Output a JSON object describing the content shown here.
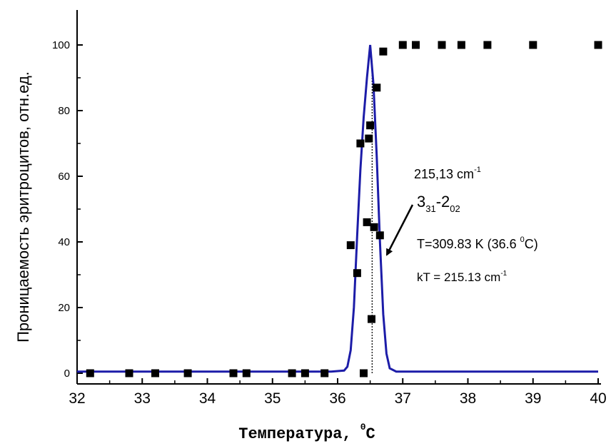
{
  "chart_data": {
    "type": "scatter",
    "xlabel": "Температура, ⁰С",
    "xlabel_main": "Температура,",
    "xlabel_sup": "0",
    "xlabel_unit": "C",
    "ylabel": "Проницаемость эритроцитов, отн.ед.",
    "xlim": [
      32,
      40
    ],
    "ylim": [
      0,
      100
    ],
    "x_ticks": [
      "32",
      "33",
      "34",
      "35",
      "36",
      "37",
      "38",
      "39",
      "40"
    ],
    "y_ticks": [
      "0",
      "20",
      "40",
      "60",
      "80",
      "100"
    ],
    "grid": false,
    "colors": {
      "points": "#000000",
      "curve": "#1c1ca8",
      "marker_line": "#000000"
    },
    "series": [
      {
        "kind": "scatter-points",
        "points": [
          [
            32.2,
            0
          ],
          [
            32.8,
            0
          ],
          [
            33.2,
            0
          ],
          [
            33.7,
            0
          ],
          [
            34.4,
            0
          ],
          [
            34.6,
            0
          ],
          [
            35.3,
            0
          ],
          [
            35.5,
            0
          ],
          [
            35.8,
            0
          ],
          [
            36.4,
            0
          ],
          [
            36.2,
            39
          ],
          [
            36.3,
            30.5
          ],
          [
            36.35,
            70
          ],
          [
            36.45,
            46
          ],
          [
            36.48,
            71.5
          ],
          [
            36.5,
            75.5
          ],
          [
            36.52,
            16.5
          ],
          [
            36.56,
            44.5
          ],
          [
            36.6,
            87
          ],
          [
            36.65,
            42
          ],
          [
            36.7,
            98
          ],
          [
            37.0,
            100
          ],
          [
            37.2,
            100
          ],
          [
            37.6,
            100
          ],
          [
            37.9,
            100
          ],
          [
            38.3,
            100
          ],
          [
            39.0,
            100
          ],
          [
            40.0,
            100
          ]
        ]
      },
      {
        "kind": "peak-curve",
        "x": [
          32.0,
          35.9,
          36.1,
          36.15,
          36.2,
          36.25,
          36.3,
          36.35,
          36.4,
          36.45,
          36.5,
          36.55,
          36.6,
          36.65,
          36.7,
          36.75,
          36.8,
          36.9,
          40.0
        ],
        "y": [
          0.5,
          0.5,
          0.8,
          2,
          7,
          20,
          42,
          62,
          78,
          90,
          100,
          88,
          66,
          40,
          18,
          6,
          1.5,
          0.5,
          0.5
        ]
      }
    ],
    "reference_line_x": 36.53,
    "annotations": {
      "freq": "215,13 cm",
      "freq_sup": "-1",
      "transition_a": "3",
      "transition_a_sub": "31",
      "transition_dash": "-2",
      "transition_b_sub": "02",
      "temp_main": "T=309.83 K (36.6 ",
      "temp_sup": "0",
      "temp_end": "C)",
      "kt_main": "kT = 215.13 cm",
      "kt_sup": "-1"
    }
  }
}
